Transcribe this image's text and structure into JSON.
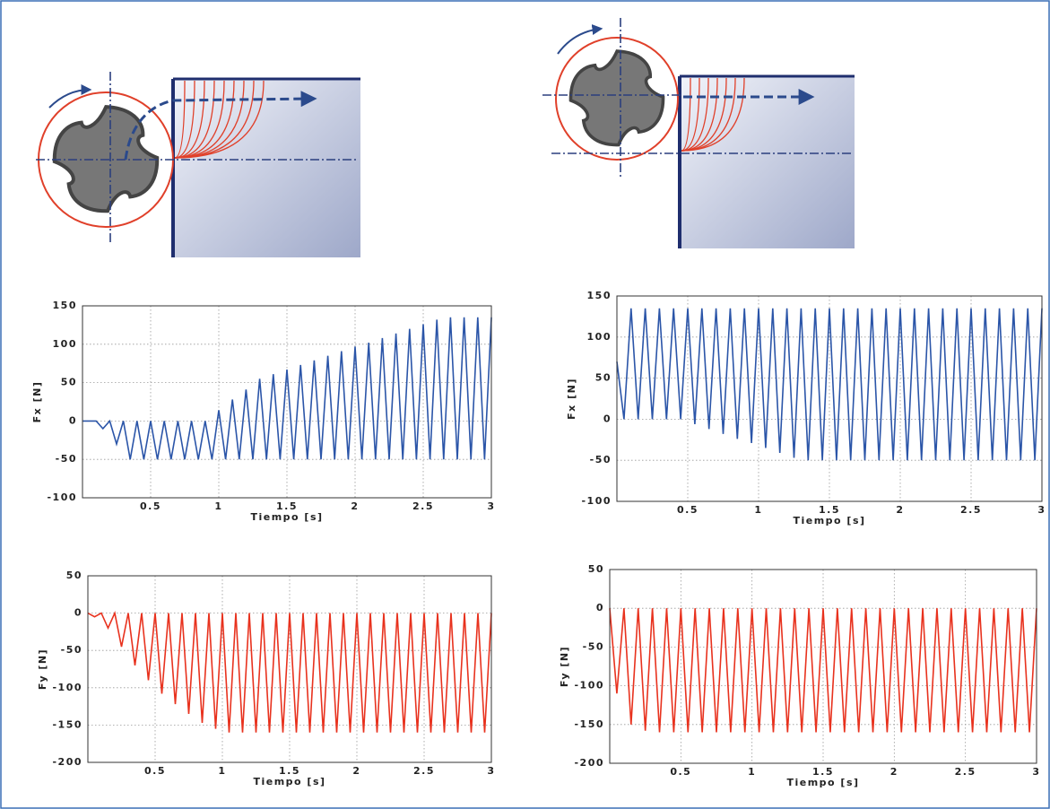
{
  "chart_data": [
    {
      "type": "line",
      "x_label": "Tiempo [s]",
      "y_label": "Fx [N]",
      "color": "#2b55a8",
      "grid": true,
      "xlim": [
        0,
        3
      ],
      "xticks": [
        0.5,
        1,
        1.5,
        2,
        2.5,
        3
      ],
      "ylim": [
        -100,
        150
      ],
      "yticks": [
        -100,
        -50,
        0,
        50,
        100,
        150
      ],
      "x": [
        0,
        0.05,
        0.1,
        0.15,
        0.2,
        0.25,
        0.3,
        0.35,
        0.4,
        0.45,
        0.5,
        0.55,
        0.6,
        0.65,
        0.7,
        0.75,
        0.8,
        0.85,
        0.9,
        0.95,
        1,
        1.05,
        1.1,
        1.15,
        1.2,
        1.25,
        1.3,
        1.35,
        1.4,
        1.45,
        1.5,
        1.55,
        1.6,
        1.65,
        1.7,
        1.75,
        1.8,
        1.85,
        1.9,
        1.95,
        2,
        2.05,
        2.1,
        2.15,
        2.2,
        2.25,
        2.3,
        2.35,
        2.4,
        2.45,
        2.5,
        2.55,
        2.6,
        2.65,
        2.7,
        2.75,
        2.8,
        2.85,
        2.9,
        2.95,
        3
      ],
      "values": [
        0,
        0,
        0,
        -10,
        0,
        -30,
        0,
        -50,
        0,
        -50,
        0,
        -50,
        0,
        -50,
        0,
        -50,
        0,
        -50,
        0,
        -50,
        14,
        -50,
        28,
        -50,
        41,
        -50,
        55,
        -50,
        61,
        -50,
        67,
        -50,
        73,
        -50,
        79,
        -50,
        85,
        -50,
        91,
        -50,
        97,
        -50,
        102,
        -50,
        108,
        -50,
        114,
        -50,
        120,
        -50,
        126,
        -50,
        132,
        -50,
        135,
        -50,
        135,
        -50,
        135,
        -50,
        135
      ]
    },
    {
      "type": "line",
      "x_label": "Tiempo [s]",
      "y_label": "Fx [N]",
      "color": "#2b55a8",
      "grid": true,
      "xlim": [
        0,
        3
      ],
      "xticks": [
        0.5,
        1,
        1.5,
        2,
        2.5,
        3
      ],
      "ylim": [
        -100,
        150
      ],
      "yticks": [
        -100,
        -50,
        0,
        50,
        100,
        150
      ],
      "x": [
        0,
        0.05,
        0.1,
        0.15,
        0.2,
        0.25,
        0.3,
        0.35,
        0.4,
        0.45,
        0.5,
        0.55,
        0.6,
        0.65,
        0.7,
        0.75,
        0.8,
        0.85,
        0.9,
        0.95,
        1,
        1.05,
        1.1,
        1.15,
        1.2,
        1.25,
        1.3,
        1.35,
        1.4,
        1.45,
        1.5,
        1.55,
        1.6,
        1.65,
        1.7,
        1.75,
        1.8,
        1.85,
        1.9,
        1.95,
        2,
        2.05,
        2.1,
        2.15,
        2.2,
        2.25,
        2.3,
        2.35,
        2.4,
        2.45,
        2.5,
        2.55,
        2.6,
        2.65,
        2.7,
        2.75,
        2.8,
        2.85,
        2.9,
        2.95,
        3
      ],
      "values": [
        70,
        0,
        135,
        0,
        135,
        0,
        135,
        0,
        135,
        0,
        135,
        -6,
        135,
        -12,
        135,
        -18,
        135,
        -24,
        135,
        -29,
        135,
        -35,
        135,
        -41,
        135,
        -47,
        135,
        -50,
        135,
        -50,
        135,
        -50,
        135,
        -50,
        135,
        -50,
        135,
        -50,
        135,
        -50,
        135,
        -50,
        135,
        -50,
        135,
        -50,
        135,
        -50,
        135,
        -50,
        135,
        -50,
        135,
        -50,
        135,
        -50,
        135,
        -50,
        135,
        -50,
        135
      ]
    },
    {
      "type": "line",
      "x_label": "Tiempo [s]",
      "y_label": "Fy [N]",
      "color": "#e8321e",
      "grid": true,
      "xlim": [
        0,
        3
      ],
      "xticks": [
        0.5,
        1,
        1.5,
        2,
        2.5,
        3
      ],
      "ylim": [
        -200,
        50
      ],
      "yticks": [
        -200,
        -150,
        -100,
        -50,
        0,
        50
      ],
      "x": [
        0,
        0.05,
        0.1,
        0.15,
        0.2,
        0.25,
        0.3,
        0.35,
        0.4,
        0.45,
        0.5,
        0.55,
        0.6,
        0.65,
        0.7,
        0.75,
        0.8,
        0.85,
        0.9,
        0.95,
        1,
        1.05,
        1.1,
        1.15,
        1.2,
        1.25,
        1.3,
        1.35,
        1.4,
        1.45,
        1.5,
        1.55,
        1.6,
        1.65,
        1.7,
        1.75,
        1.8,
        1.85,
        1.9,
        1.95,
        2,
        2.05,
        2.1,
        2.15,
        2.2,
        2.25,
        2.3,
        2.35,
        2.4,
        2.45,
        2.5,
        2.55,
        2.6,
        2.65,
        2.7,
        2.75,
        2.8,
        2.85,
        2.9,
        2.95,
        3
      ],
      "values": [
        0,
        -5,
        0,
        -20,
        0,
        -45,
        0,
        -70,
        0,
        -90,
        0,
        -108,
        0,
        -122,
        0,
        -135,
        0,
        -147,
        0,
        -155,
        0,
        -160,
        0,
        -160,
        0,
        -160,
        0,
        -160,
        0,
        -160,
        0,
        -160,
        0,
        -160,
        0,
        -160,
        0,
        -160,
        0,
        -160,
        0,
        -160,
        0,
        -160,
        0,
        -160,
        0,
        -160,
        0,
        -160,
        0,
        -160,
        0,
        -160,
        0,
        -160,
        0,
        -160,
        0,
        -160,
        0
      ]
    },
    {
      "type": "line",
      "x_label": "Tiempo [s]",
      "y_label": "Fy [N]",
      "color": "#e8321e",
      "grid": true,
      "xlim": [
        0,
        3
      ],
      "xticks": [
        0.5,
        1,
        1.5,
        2,
        2.5,
        3
      ],
      "ylim": [
        -200,
        50
      ],
      "yticks": [
        -200,
        -150,
        -100,
        -50,
        0,
        50
      ],
      "x": [
        0,
        0.05,
        0.1,
        0.15,
        0.2,
        0.25,
        0.3,
        0.35,
        0.4,
        0.45,
        0.5,
        0.55,
        0.6,
        0.65,
        0.7,
        0.75,
        0.8,
        0.85,
        0.9,
        0.95,
        1,
        1.05,
        1.1,
        1.15,
        1.2,
        1.25,
        1.3,
        1.35,
        1.4,
        1.45,
        1.5,
        1.55,
        1.6,
        1.65,
        1.7,
        1.75,
        1.8,
        1.85,
        1.9,
        1.95,
        2,
        2.05,
        2.1,
        2.15,
        2.2,
        2.25,
        2.3,
        2.35,
        2.4,
        2.45,
        2.5,
        2.55,
        2.6,
        2.65,
        2.7,
        2.75,
        2.8,
        2.85,
        2.9,
        2.95,
        3
      ],
      "values": [
        0,
        -110,
        0,
        -150,
        0,
        -158,
        0,
        -160,
        0,
        -160,
        0,
        -160,
        0,
        -160,
        0,
        -160,
        0,
        -160,
        0,
        -160,
        0,
        -160,
        0,
        -160,
        0,
        -160,
        0,
        -160,
        0,
        -160,
        0,
        -160,
        0,
        -160,
        0,
        -160,
        0,
        -160,
        0,
        -160,
        0,
        -160,
        0,
        -160,
        0,
        -160,
        0,
        -160,
        0,
        -160,
        0,
        -160,
        0,
        -160,
        0,
        -160,
        0,
        -160,
        0,
        -160,
        0
      ]
    }
  ]
}
